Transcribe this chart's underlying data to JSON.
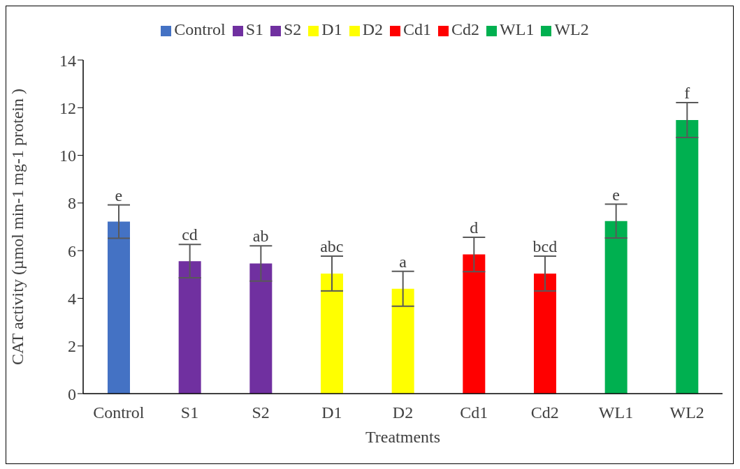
{
  "chart_data": {
    "type": "bar",
    "xlabel": "Treatments",
    "ylabel": "CAT activity (µmol min-1 mg-1 protein )",
    "categories": [
      "Control",
      "S1",
      "S2",
      "D1",
      "D2",
      "Cd1",
      "Cd2",
      "WL1",
      "WL2"
    ],
    "series": [
      {
        "name": "Control",
        "color": "#4472c4",
        "values": [
          7.22,
          null,
          null,
          null,
          null,
          null,
          null,
          null,
          null
        ],
        "errors": [
          0.7,
          null,
          null,
          null,
          null,
          null,
          null,
          null,
          null
        ]
      },
      {
        "name": "S1",
        "color": "#7030a0",
        "values": [
          null,
          5.56,
          null,
          null,
          null,
          null,
          null,
          null,
          null
        ],
        "errors": [
          null,
          0.7,
          null,
          null,
          null,
          null,
          null,
          null,
          null
        ]
      },
      {
        "name": "S2",
        "color": "#7030a0",
        "values": [
          null,
          null,
          5.46,
          null,
          null,
          null,
          null,
          null,
          null
        ],
        "errors": [
          null,
          null,
          0.74,
          null,
          null,
          null,
          null,
          null,
          null
        ]
      },
      {
        "name": "D1",
        "color": "#ffff00",
        "values": [
          null,
          null,
          null,
          5.04,
          null,
          null,
          null,
          null,
          null
        ],
        "errors": [
          null,
          null,
          null,
          0.73,
          null,
          null,
          null,
          null,
          null
        ]
      },
      {
        "name": "D2",
        "color": "#ffff00",
        "values": [
          null,
          null,
          null,
          null,
          4.4,
          null,
          null,
          null,
          null
        ],
        "errors": [
          null,
          null,
          null,
          null,
          0.73,
          null,
          null,
          null,
          null
        ]
      },
      {
        "name": "Cd1",
        "color": "#ff0000",
        "values": [
          null,
          null,
          null,
          null,
          null,
          5.84,
          null,
          null,
          null
        ],
        "errors": [
          null,
          null,
          null,
          null,
          null,
          0.72,
          null,
          null,
          null
        ]
      },
      {
        "name": "Cd2",
        "color": "#ff0000",
        "values": [
          null,
          null,
          null,
          null,
          null,
          null,
          5.04,
          null,
          null
        ],
        "errors": [
          null,
          null,
          null,
          null,
          null,
          null,
          0.73,
          null,
          null
        ]
      },
      {
        "name": "WL1",
        "color": "#00b050",
        "values": [
          null,
          null,
          null,
          null,
          null,
          null,
          null,
          7.24,
          null
        ],
        "errors": [
          null,
          null,
          null,
          null,
          null,
          null,
          null,
          0.71,
          null
        ]
      },
      {
        "name": "WL2",
        "color": "#00b050",
        "values": [
          null,
          null,
          null,
          null,
          null,
          null,
          null,
          null,
          11.48
        ],
        "errors": [
          null,
          null,
          null,
          null,
          null,
          null,
          null,
          null,
          0.73
        ]
      }
    ],
    "ylim": [
      0,
      14
    ],
    "yticks": [
      0,
      2,
      4,
      6,
      8,
      10,
      12,
      14
    ],
    "grid": false,
    "legend": "top",
    "annotations": [
      {
        "text": "e",
        "x": "Control",
        "y": 7.92
      },
      {
        "text": "cd",
        "x": "S1",
        "y": 6.26
      },
      {
        "text": "ab",
        "x": "S2",
        "y": 6.2
      },
      {
        "text": "abc",
        "x": "D1",
        "y": 5.77
      },
      {
        "text": "a",
        "x": "D2",
        "y": 5.13
      },
      {
        "text": "d",
        "x": "Cd1",
        "y": 6.56
      },
      {
        "text": "bcd",
        "x": "Cd2",
        "y": 5.77
      },
      {
        "text": "e",
        "x": "WL1",
        "y": 7.95
      },
      {
        "text": "f",
        "x": "WL2",
        "y": 12.21
      }
    ]
  }
}
